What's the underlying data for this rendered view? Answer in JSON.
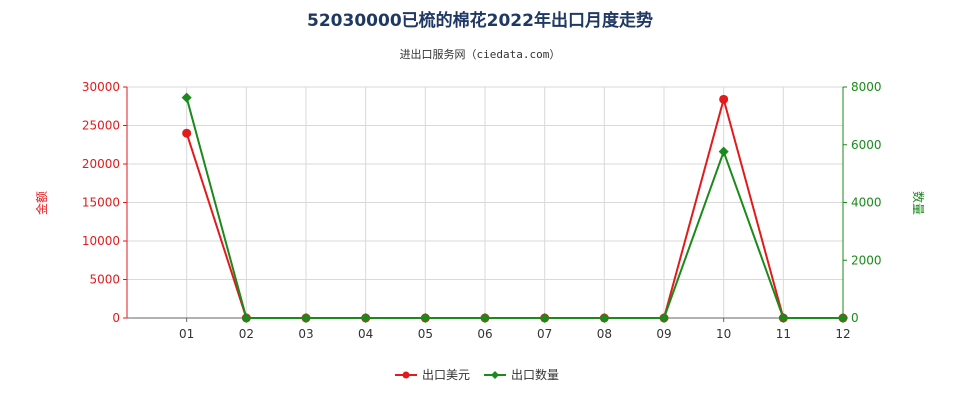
{
  "chart_data": {
    "type": "line",
    "title": "52030000已梳的棉花2022年出口月度走势",
    "subtitle": "进出口服务网（ciedata.com）",
    "categories": [
      "01",
      "02",
      "03",
      "04",
      "05",
      "06",
      "07",
      "08",
      "09",
      "10",
      "11",
      "12"
    ],
    "y_left": {
      "label": "金额",
      "ticks": [
        "0",
        "5000",
        "10000",
        "15000",
        "20000",
        "25000",
        "30000"
      ],
      "range": [
        0,
        30000
      ],
      "color": "#e31a1c"
    },
    "y_right": {
      "label": "数量",
      "ticks": [
        "0",
        "2000",
        "4000",
        "6000",
        "8000"
      ],
      "range": [
        0,
        8000
      ],
      "color": "#1a8a1a"
    },
    "series": [
      {
        "name": "出口美元",
        "axis": "left",
        "color": "#e31a1c",
        "marker": "circle",
        "values": [
          24000,
          0,
          0,
          0,
          0,
          0,
          0,
          0,
          0,
          28400,
          0,
          0
        ]
      },
      {
        "name": "出口数量",
        "axis": "right",
        "color": "#1a8a1a",
        "marker": "diamond",
        "values": [
          7630,
          0,
          0,
          0,
          0,
          0,
          0,
          0,
          0,
          5760,
          0,
          0
        ]
      }
    ],
    "grid": true,
    "legend_position": "bottom-center"
  }
}
